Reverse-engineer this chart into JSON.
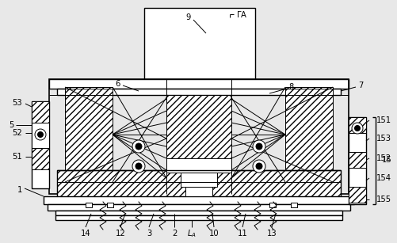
{
  "bg_color": "#e8e8e8",
  "line_color": "#000000",
  "fig_width": 5.02,
  "fig_height": 3.07,
  "dpi": 100
}
